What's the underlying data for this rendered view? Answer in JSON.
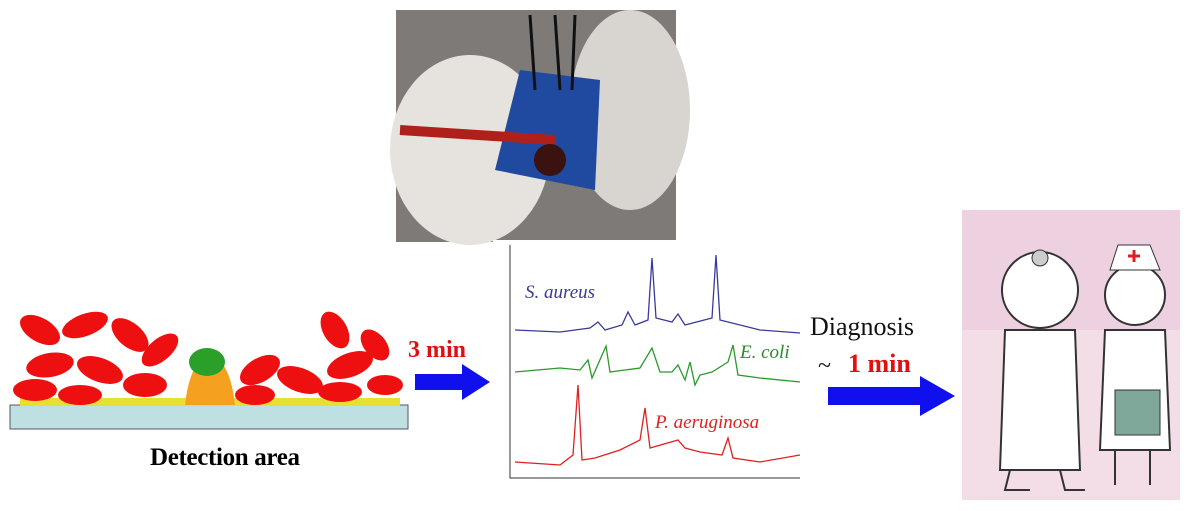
{
  "detection": {
    "label": "Detection area"
  },
  "step1": {
    "time": "3 min"
  },
  "spectrum": {
    "labels": [
      "S. aureus",
      "E. coli",
      "P. aeruginosa"
    ]
  },
  "diagnosis": {
    "label": "Diagnosis",
    "prefix": "~",
    "time": "1 min"
  }
}
